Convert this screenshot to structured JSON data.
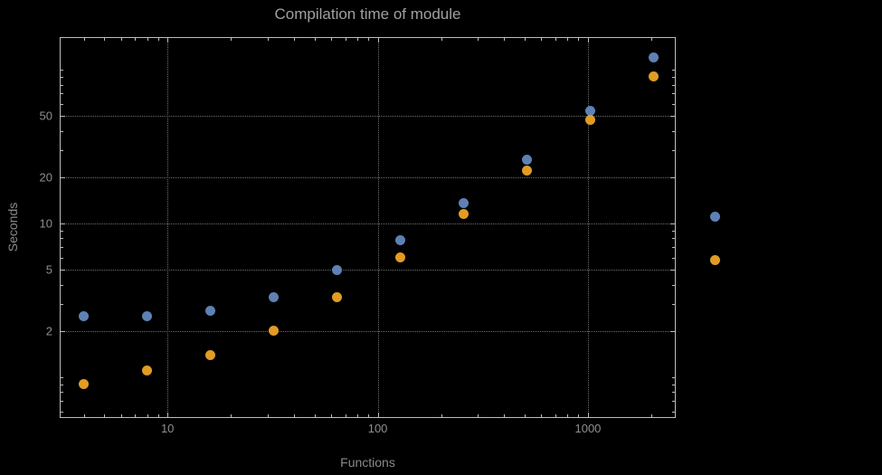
{
  "chart_data": {
    "type": "scatter",
    "title": "Compilation time of module",
    "xlabel": "Functions",
    "ylabel": "Seconds",
    "x_scale": "log",
    "y_scale": "log",
    "xlim": [
      3.1,
      2590
    ],
    "ylim": [
      0.55,
      161
    ],
    "grid": "dotted",
    "legend_position": "right-outside-markers-only",
    "x_tick_labels": [
      10,
      100,
      1000
    ],
    "y_tick_labels": [
      2,
      5,
      10,
      20,
      50
    ],
    "x": [
      4,
      8,
      16,
      32,
      64,
      128,
      256,
      512,
      1024,
      2048
    ],
    "series": [
      {
        "name": "blue",
        "color": "#5E81B5",
        "values": [
          2.5,
          2.5,
          2.7,
          3.3,
          5.0,
          7.8,
          13.5,
          26,
          54,
          120
        ]
      },
      {
        "name": "orange",
        "color": "#E19C24",
        "values": [
          0.9,
          1.1,
          1.4,
          2.0,
          3.3,
          6.0,
          11.5,
          22,
          47,
          90
        ]
      }
    ]
  },
  "colors": {
    "background": "#000000",
    "frame": "#bdbdbd",
    "grid": "#6e6e6e",
    "title_text": "#a0a0a0",
    "tick_text": "#8f8f8f",
    "axis_label_text": "#8a8a8a"
  }
}
